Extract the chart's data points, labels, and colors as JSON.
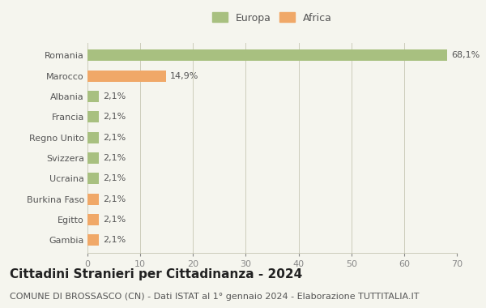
{
  "categories": [
    "Romania",
    "Marocco",
    "Albania",
    "Francia",
    "Regno Unito",
    "Svizzera",
    "Ucraina",
    "Burkina Faso",
    "Egitto",
    "Gambia"
  ],
  "values": [
    68.1,
    14.9,
    2.1,
    2.1,
    2.1,
    2.1,
    2.1,
    2.1,
    2.1,
    2.1
  ],
  "labels": [
    "68,1%",
    "14,9%",
    "2,1%",
    "2,1%",
    "2,1%",
    "2,1%",
    "2,1%",
    "2,1%",
    "2,1%",
    "2,1%"
  ],
  "colors": [
    "#a8c080",
    "#f0a868",
    "#a8c080",
    "#a8c080",
    "#a8c080",
    "#a8c080",
    "#a8c080",
    "#f0a868",
    "#f0a868",
    "#f0a868"
  ],
  "europa_color": "#a8c080",
  "africa_color": "#f0a868",
  "xlim": [
    0,
    70
  ],
  "xticks": [
    0,
    10,
    20,
    30,
    40,
    50,
    60,
    70
  ],
  "title": "Cittadini Stranieri per Cittadinanza - 2024",
  "subtitle": "COMUNE DI BROSSASCO (CN) - Dati ISTAT al 1° gennaio 2024 - Elaborazione TUTTITALIA.IT",
  "background_color": "#f5f5ee",
  "grid_color": "#ccccbb",
  "bar_height": 0.55,
  "title_fontsize": 11,
  "subtitle_fontsize": 8,
  "label_fontsize": 8,
  "tick_fontsize": 8,
  "legend_fontsize": 9
}
